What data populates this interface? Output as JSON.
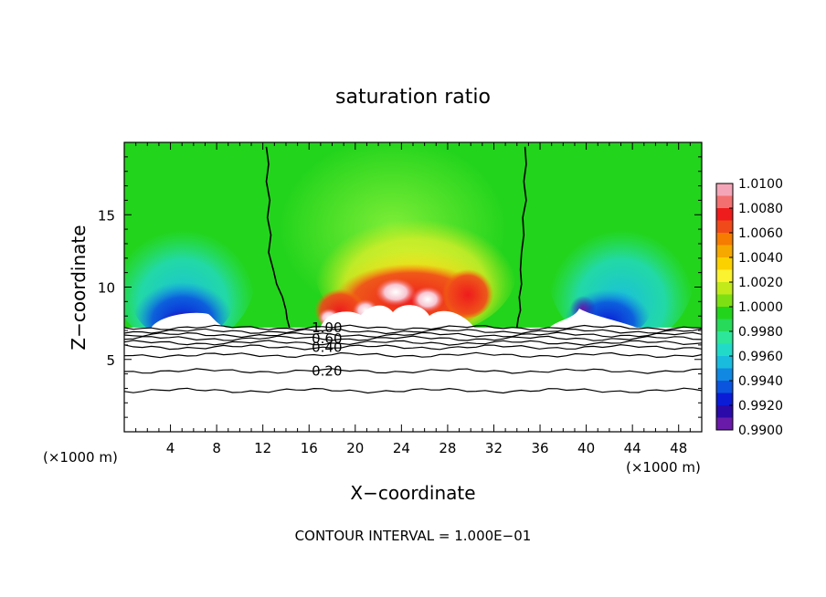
{
  "chart_data": {
    "type": "heatmap",
    "title": "saturation ratio",
    "xlabel": "X−coordinate",
    "ylabel": "Z−coordinate",
    "x_unit_left": "(×1000 m)",
    "x_unit_right": "(×1000 m)",
    "footer": "CONTOUR INTERVAL = 1.000E−01",
    "xlim": [
      0,
      50
    ],
    "ylim": [
      0,
      20
    ],
    "x_ticks": [
      4,
      8,
      12,
      16,
      20,
      24,
      28,
      32,
      36,
      40,
      44,
      48
    ],
    "y_ticks": [
      5,
      10,
      15
    ],
    "colorbar": {
      "min": 0.99,
      "max": 1.01,
      "labels": [
        "1.0100",
        "1.0080",
        "1.0060",
        "1.0040",
        "1.0020",
        "1.0000",
        "0.9980",
        "0.9960",
        "0.9940",
        "0.9920",
        "0.9900"
      ],
      "colors": [
        "#f4a6b8",
        "#f37070",
        "#ee1c1c",
        "#f04a1a",
        "#f57c00",
        "#f6a800",
        "#fbd100",
        "#fbf230",
        "#c2ea1b",
        "#7ee012",
        "#22d41c",
        "#27da5a",
        "#2de69a",
        "#22dac8",
        "#1abcde",
        "#1188e2",
        "#0b54de",
        "#0a1cd6",
        "#2a0aa8",
        "#6a1aa8"
      ]
    },
    "cloud_base_z": 7.2,
    "lower_contours": [
      {
        "label": "1.00",
        "z": 7.2
      },
      {
        "label": "",
        "z": 6.95
      },
      {
        "label": "",
        "z": 6.7
      },
      {
        "label": "0.60",
        "z": 6.45
      },
      {
        "label": "",
        "z": 6.15
      },
      {
        "label": "0.40",
        "z": 5.85
      },
      {
        "label": "",
        "z": 5.3
      },
      {
        "label": "0.20",
        "z": 4.2
      },
      {
        "label": "",
        "z": 2.85
      }
    ],
    "unit_contours": [
      {
        "label": "1.00",
        "x": [
          12.3,
          12.5,
          12.3,
          12.6,
          12.4,
          12.7,
          12.5,
          12.9,
          13.2,
          13.7,
          14.0,
          14.1,
          14.3
        ],
        "z": [
          19.7,
          18.5,
          17.3,
          16.0,
          14.8,
          13.6,
          12.4,
          11.2,
          10.2,
          9.3,
          8.4,
          7.8,
          7.2
        ]
      },
      {
        "label": "",
        "x": [
          34.7,
          34.8,
          34.6,
          34.8,
          34.5,
          34.6,
          34.4,
          34.3,
          34.4,
          34.2,
          34.3,
          34.1,
          34.0
        ],
        "z": [
          19.7,
          18.5,
          17.3,
          16.0,
          14.8,
          13.6,
          12.4,
          11.2,
          10.2,
          9.3,
          8.4,
          7.8,
          7.2
        ]
      }
    ]
  }
}
